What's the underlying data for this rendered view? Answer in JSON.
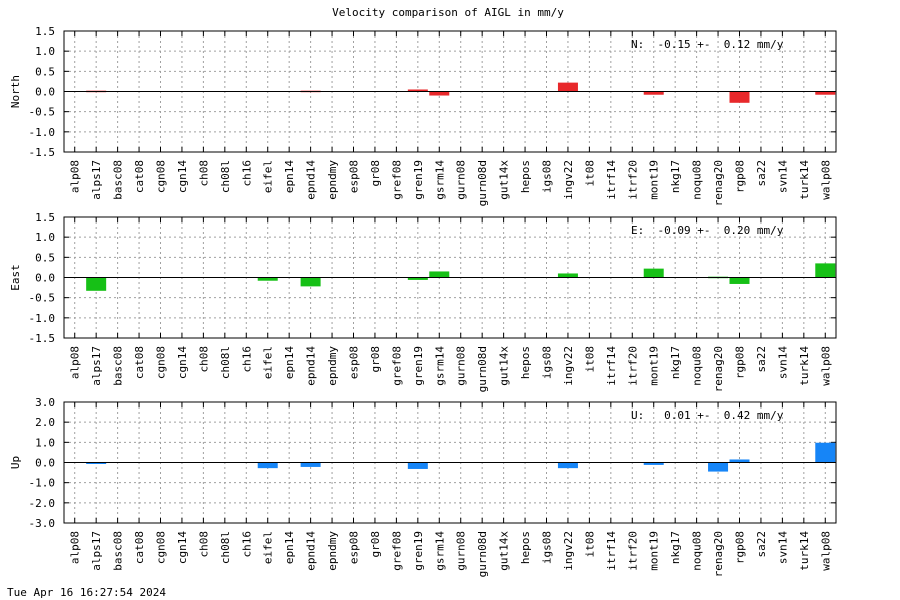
{
  "title": "Velocity comparison of AIGL in mm/y",
  "timestamp": "Tue Apr 16 16:27:54 2024",
  "chart_data": {
    "type": "bar",
    "title": "Velocity comparison of AIGL in mm/y",
    "categories": [
      "alp08",
      "alps17",
      "basc08",
      "cat08",
      "cgn08",
      "cgn14",
      "ch08",
      "ch08l",
      "ch16",
      "eifel",
      "epn14",
      "epnd14",
      "epndmy",
      "esp08",
      "gr08",
      "gref08",
      "gren19",
      "gsrm14",
      "gurn08",
      "gurn08d",
      "gut14x",
      "hepos",
      "igs08",
      "ingv22",
      "it08",
      "itrf14",
      "itrf20",
      "mont19",
      "nkg17",
      "noqu08",
      "renag20",
      "rgp08",
      "sa22",
      "svn14",
      "turk14",
      "walp08"
    ],
    "grid": true,
    "panels": [
      {
        "ylabel": "North",
        "ylim": [
          -1.5,
          1.5
        ],
        "yticks": [
          "1.5",
          "1.0",
          "0.5",
          "0.0",
          "-0.5",
          "-1.0",
          "-1.5"
        ],
        "color": "#e8282b",
        "annotation": "N:  -0.15 +-  0.12 mm/y",
        "values": [
          0,
          0.02,
          0,
          0,
          0,
          0,
          0,
          0,
          0,
          0,
          0,
          0.02,
          0,
          0,
          0,
          0,
          0.05,
          -0.1,
          0,
          0,
          0,
          0,
          0,
          0.22,
          0,
          0,
          0,
          -0.08,
          0,
          0,
          0,
          -0.28,
          0,
          0,
          0,
          -0.08
        ]
      },
      {
        "ylabel": "East",
        "ylim": [
          -1.5,
          1.5
        ],
        "yticks": [
          "1.5",
          "1.0",
          "0.5",
          "0.0",
          "-0.5",
          "-1.0",
          "-1.5"
        ],
        "color": "#16c016",
        "annotation": "E:  -0.09 +-  0.20 mm/y",
        "values": [
          0,
          -0.33,
          0,
          0,
          0,
          0,
          0,
          0,
          0,
          -0.08,
          0,
          -0.22,
          0,
          0,
          0,
          0,
          -0.06,
          0.15,
          0,
          0,
          0,
          0,
          0,
          0.1,
          0,
          0,
          0,
          0.22,
          0,
          0,
          0.02,
          -0.16,
          0,
          0,
          0,
          0.35
        ]
      },
      {
        "ylabel": "Up",
        "ylim": [
          -3.0,
          3.0
        ],
        "yticks": [
          "3.0",
          "2.0",
          "1.0",
          "0.0",
          "-1.0",
          "-2.0",
          "-3.0"
        ],
        "color": "#1685f7",
        "annotation": "U:   0.01 +-  0.42 mm/y",
        "values": [
          0,
          -0.05,
          0,
          0,
          0,
          0,
          0,
          0,
          0,
          -0.28,
          0,
          -0.22,
          0,
          0,
          0,
          0,
          -0.32,
          0,
          0,
          0,
          0,
          0,
          0,
          -0.28,
          0,
          0,
          0,
          -0.12,
          0,
          0,
          -0.45,
          0.15,
          0,
          0,
          0,
          0.98
        ]
      }
    ]
  }
}
